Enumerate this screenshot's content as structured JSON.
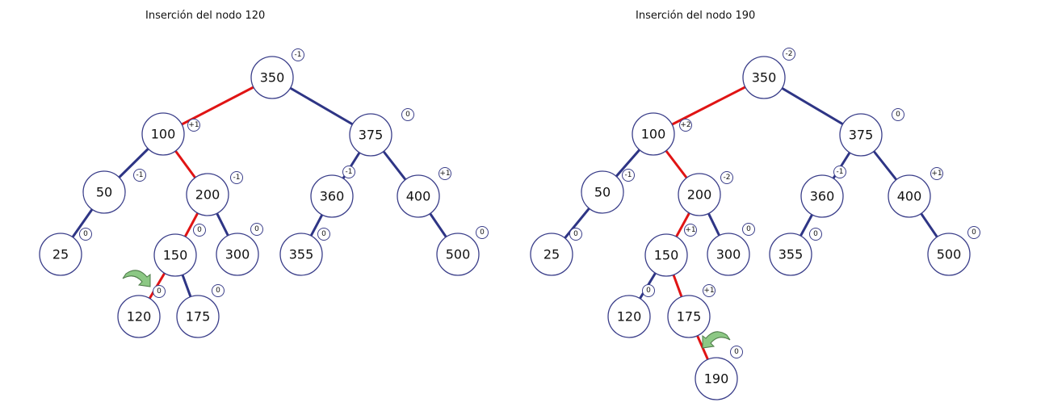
{
  "colors": {
    "edge_normal": "#2e3585",
    "edge_highlight": "#e01414",
    "node_stroke": "#3b3f8a",
    "rotation_arrow": "#8cc884"
  },
  "diagrams": [
    {
      "title": "Inserción del nodo 120",
      "rotation_arrow": "curved-arrow-left",
      "nodes": [
        {
          "id": "350",
          "label": "350",
          "balance": "-1"
        },
        {
          "id": "100",
          "label": "100",
          "balance": "+1"
        },
        {
          "id": "375",
          "label": "375",
          "balance": "0"
        },
        {
          "id": "50",
          "label": "50",
          "balance": "-1"
        },
        {
          "id": "200",
          "label": "200",
          "balance": "-1"
        },
        {
          "id": "360",
          "label": "360",
          "balance": "-1"
        },
        {
          "id": "400",
          "label": "400",
          "balance": "+1"
        },
        {
          "id": "25",
          "label": "25",
          "balance": "0"
        },
        {
          "id": "150",
          "label": "150",
          "balance": "0"
        },
        {
          "id": "300",
          "label": "300",
          "balance": "0"
        },
        {
          "id": "355",
          "label": "355",
          "balance": "0"
        },
        {
          "id": "500",
          "label": "500",
          "balance": "0"
        },
        {
          "id": "120",
          "label": "120",
          "balance": "0"
        },
        {
          "id": "175",
          "label": "175",
          "balance": "0"
        }
      ],
      "edges": [
        {
          "from": "350",
          "to": "100",
          "highlight": true
        },
        {
          "from": "350",
          "to": "375",
          "highlight": false
        },
        {
          "from": "100",
          "to": "50",
          "highlight": false
        },
        {
          "from": "100",
          "to": "200",
          "highlight": true
        },
        {
          "from": "375",
          "to": "360",
          "highlight": false
        },
        {
          "from": "375",
          "to": "400",
          "highlight": false
        },
        {
          "from": "50",
          "to": "25",
          "highlight": false
        },
        {
          "from": "200",
          "to": "150",
          "highlight": true
        },
        {
          "from": "200",
          "to": "300",
          "highlight": false
        },
        {
          "from": "360",
          "to": "355",
          "highlight": false
        },
        {
          "from": "400",
          "to": "500",
          "highlight": false
        },
        {
          "from": "150",
          "to": "120",
          "highlight": true
        },
        {
          "from": "150",
          "to": "175",
          "highlight": false
        }
      ]
    },
    {
      "title": "Inserción del nodo 190",
      "rotation_arrow": "curved-arrow-right",
      "nodes": [
        {
          "id": "350",
          "label": "350",
          "balance": "-2"
        },
        {
          "id": "100",
          "label": "100",
          "balance": "+2"
        },
        {
          "id": "375",
          "label": "375",
          "balance": "0"
        },
        {
          "id": "50",
          "label": "50",
          "balance": "-1"
        },
        {
          "id": "200",
          "label": "200",
          "balance": "-2"
        },
        {
          "id": "360",
          "label": "360",
          "balance": "-1"
        },
        {
          "id": "400",
          "label": "400",
          "balance": "+1"
        },
        {
          "id": "25",
          "label": "25",
          "balance": "0"
        },
        {
          "id": "150",
          "label": "150",
          "balance": "+1"
        },
        {
          "id": "300",
          "label": "300",
          "balance": "0"
        },
        {
          "id": "355",
          "label": "355",
          "balance": "0"
        },
        {
          "id": "500",
          "label": "500",
          "balance": "0"
        },
        {
          "id": "120",
          "label": "120",
          "balance": "0"
        },
        {
          "id": "175",
          "label": "175",
          "balance": "+1"
        },
        {
          "id": "190",
          "label": "190",
          "balance": "0"
        }
      ],
      "edges": [
        {
          "from": "350",
          "to": "100",
          "highlight": true
        },
        {
          "from": "350",
          "to": "375",
          "highlight": false
        },
        {
          "from": "100",
          "to": "50",
          "highlight": false
        },
        {
          "from": "100",
          "to": "200",
          "highlight": true
        },
        {
          "from": "375",
          "to": "360",
          "highlight": false
        },
        {
          "from": "375",
          "to": "400",
          "highlight": false
        },
        {
          "from": "50",
          "to": "25",
          "highlight": false
        },
        {
          "from": "200",
          "to": "150",
          "highlight": true
        },
        {
          "from": "200",
          "to": "300",
          "highlight": false
        },
        {
          "from": "360",
          "to": "355",
          "highlight": false
        },
        {
          "from": "400",
          "to": "500",
          "highlight": false
        },
        {
          "from": "150",
          "to": "120",
          "highlight": false
        },
        {
          "from": "150",
          "to": "175",
          "highlight": true
        },
        {
          "from": "175",
          "to": "190",
          "highlight": true
        }
      ]
    }
  ]
}
